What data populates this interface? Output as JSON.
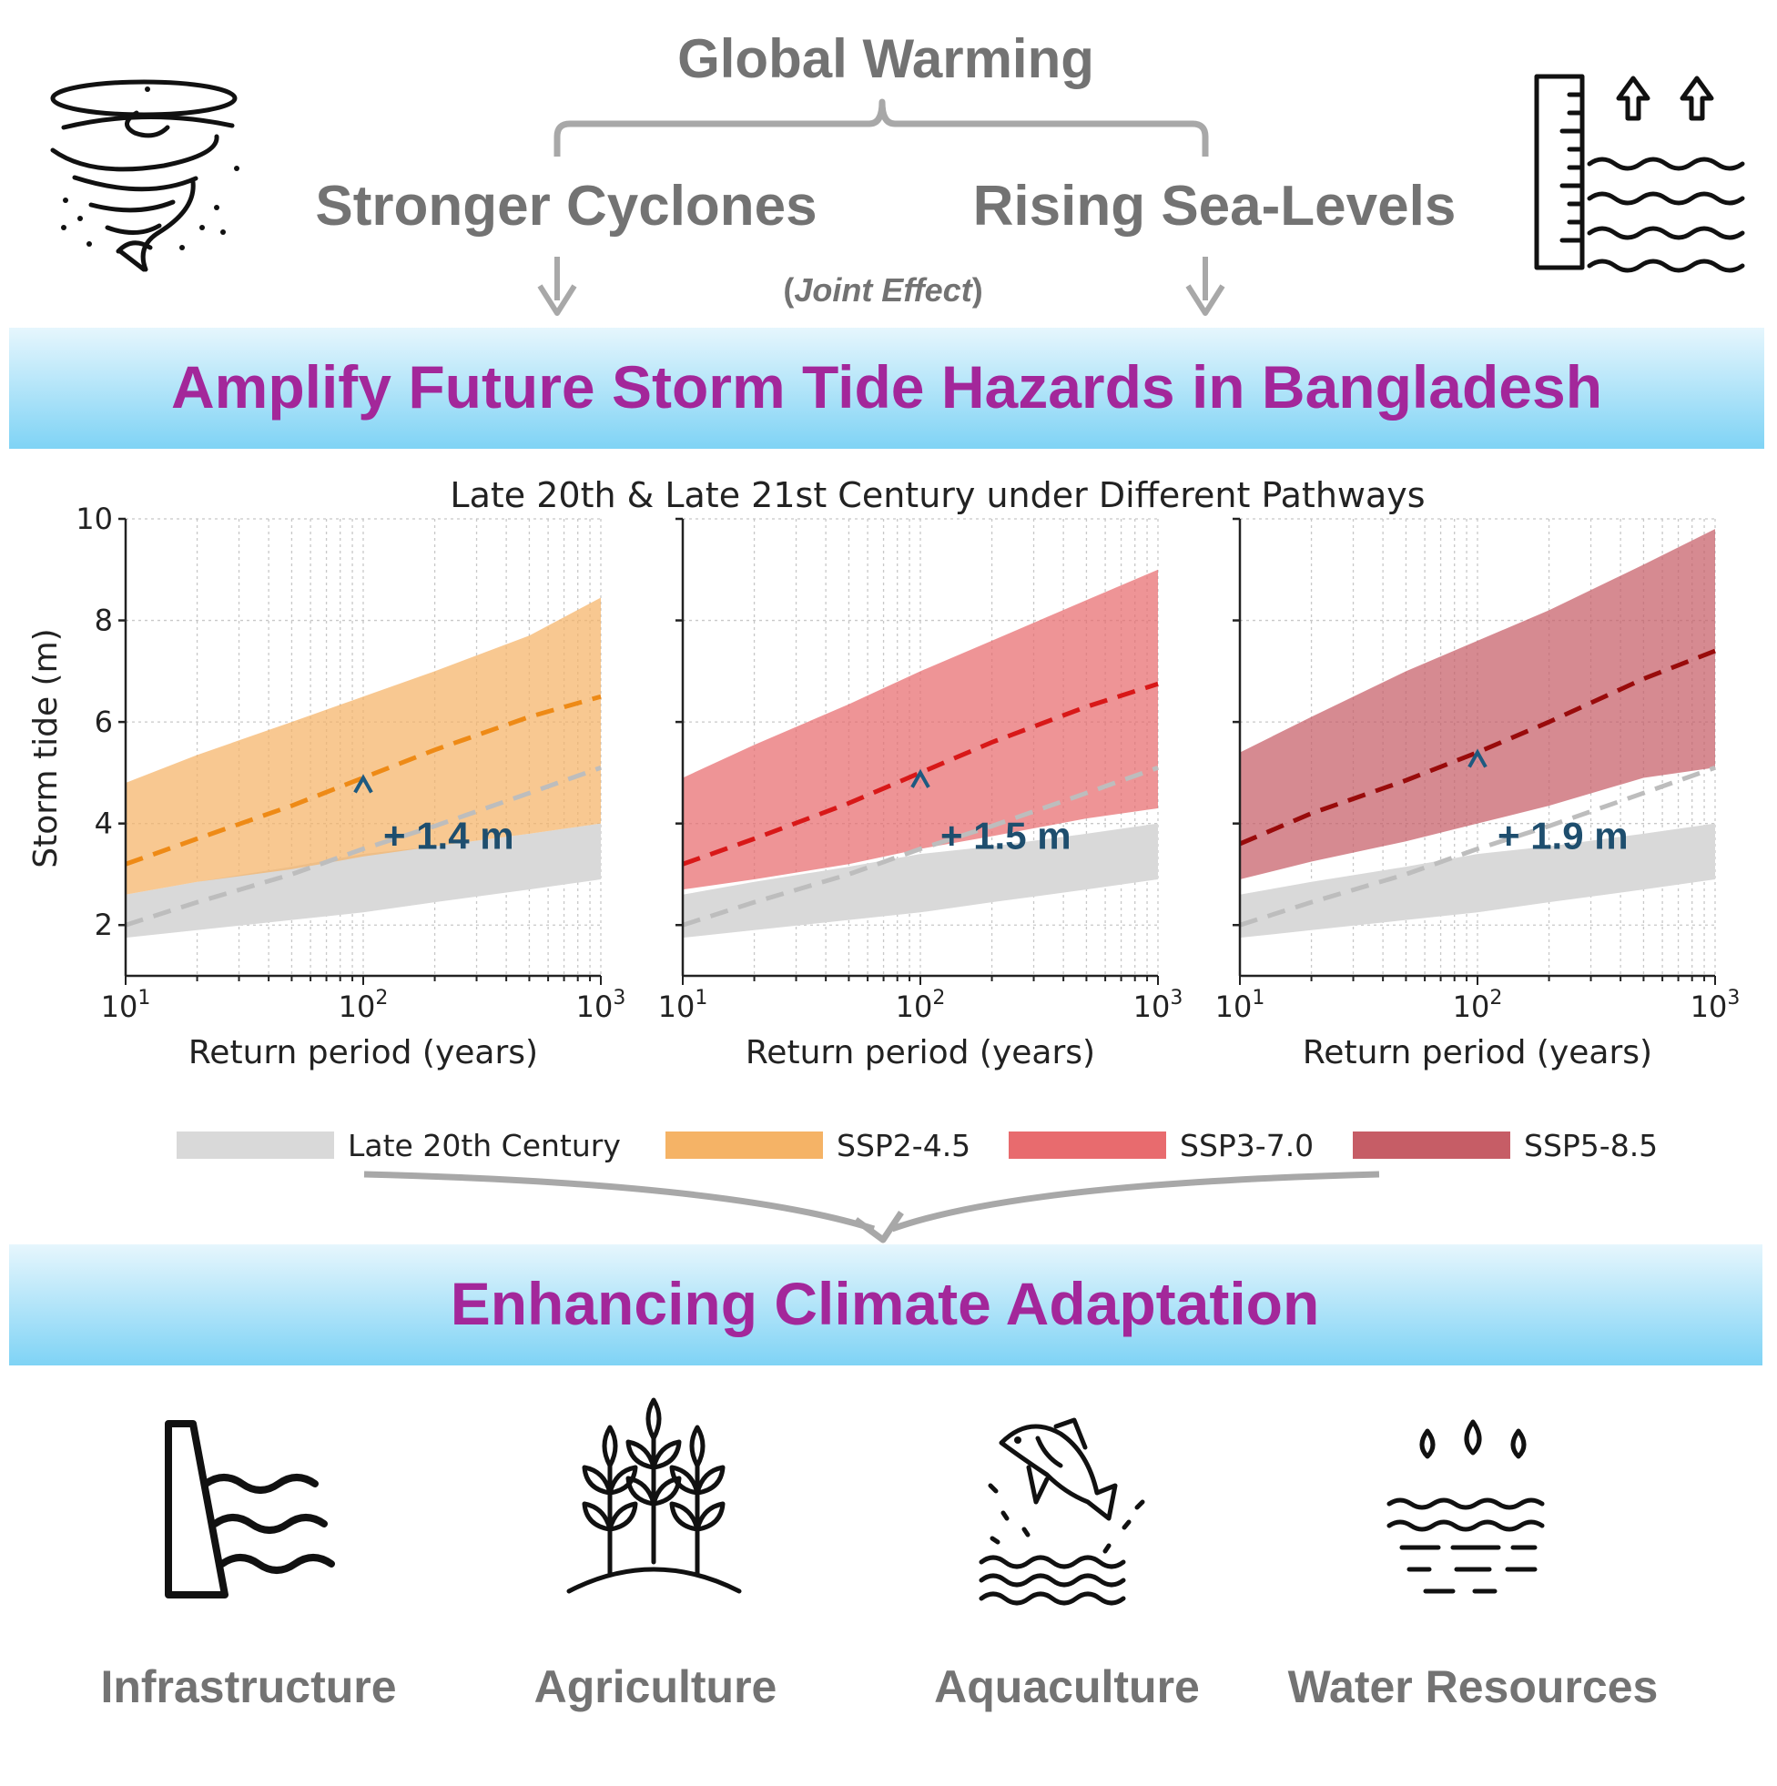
{
  "header": {
    "top_title": "Global Warming",
    "left_driver": "Stronger Cyclones",
    "right_driver": "Rising Sea-Levels",
    "joint_open": "(",
    "joint_text": "Joint Effect",
    "joint_close": ")",
    "left_icon": "cyclone-icon",
    "right_icon": "sea-level-rise-icon"
  },
  "banner_top": {
    "text": "Amplify Future Storm Tide Hazards in Bangladesh"
  },
  "banner_bottom": {
    "text": "Enhancing Climate Adaptation"
  },
  "colors": {
    "banner_text": "#a3279a",
    "banner_gradient": [
      "#e6f6fd",
      "#7fd3f5"
    ],
    "baseline_band": "#d9d9d9",
    "baseline_line": "#bdbdbd",
    "ssp245_band": "#f5b366",
    "ssp245_line": "#ee8a16",
    "ssp370_band": "#e86b6e",
    "ssp370_line": "#d81818",
    "ssp585_band": "#c65d66",
    "ssp585_line": "#990b0b",
    "gain_arrow": "#1e5a80"
  },
  "chart_data": {
    "type": "area",
    "title": "Late 20th & Late 21st Century under Different Pathways",
    "ylabel": "Storm tide (m)",
    "xlabel": "Return period (years)",
    "xscale": "log",
    "xlim": [
      10,
      1000
    ],
    "ylim": [
      1,
      10
    ],
    "yticks": [
      2,
      4,
      6,
      8,
      10
    ],
    "xticks": [
      {
        "base": "10",
        "exp": "1"
      },
      {
        "base": "10",
        "exp": "2"
      },
      {
        "base": "10",
        "exp": "3"
      }
    ],
    "grid": true,
    "legend_position": "bottom",
    "legend": [
      {
        "label": "Late 20th Century",
        "color": "#d9d9d9"
      },
      {
        "label": "SSP2-4.5",
        "color": "#f5b366"
      },
      {
        "label": "SSP3-7.0",
        "color": "#e86b6e"
      },
      {
        "label": "SSP5-8.5",
        "color": "#c65d66"
      }
    ],
    "x": [
      10,
      20,
      50,
      100,
      200,
      500,
      1000
    ],
    "baseline": {
      "name": "Late 20th Century",
      "median": [
        2.0,
        2.45,
        3.0,
        3.5,
        3.95,
        4.6,
        5.1
      ],
      "lower": [
        1.75,
        1.9,
        2.1,
        2.25,
        2.45,
        2.7,
        2.9
      ],
      "upper": [
        2.6,
        2.85,
        3.15,
        3.4,
        3.55,
        3.8,
        4.0
      ]
    },
    "panels": [
      {
        "scenario": "SSP2-4.5",
        "median": [
          3.2,
          3.7,
          4.35,
          4.9,
          5.45,
          6.1,
          6.5
        ],
        "lower": [
          2.6,
          2.85,
          3.1,
          3.35,
          3.55,
          3.8,
          4.0
        ],
        "upper": [
          4.8,
          5.35,
          6.0,
          6.5,
          7.0,
          7.7,
          8.45
        ],
        "increase_at_100yr": "+ 1.4 m"
      },
      {
        "scenario": "SSP3-7.0",
        "median": [
          3.2,
          3.7,
          4.4,
          5.0,
          5.6,
          6.3,
          6.75
        ],
        "lower": [
          2.7,
          2.9,
          3.2,
          3.5,
          3.75,
          4.1,
          4.3
        ],
        "upper": [
          4.9,
          5.55,
          6.35,
          7.0,
          7.6,
          8.4,
          9.0
        ],
        "increase_at_100yr": "+ 1.5 m"
      },
      {
        "scenario": "SSP5-8.5",
        "median": [
          3.6,
          4.2,
          4.85,
          5.4,
          6.0,
          6.85,
          7.4
        ],
        "lower": [
          2.9,
          3.25,
          3.65,
          4.0,
          4.35,
          4.9,
          5.1
        ],
        "upper": [
          5.4,
          6.1,
          7.0,
          7.6,
          8.2,
          9.1,
          9.8
        ],
        "increase_at_100yr": "+ 1.9 m"
      }
    ]
  },
  "sectors": [
    {
      "label": "Infrastructure",
      "icon": "dam-icon"
    },
    {
      "label": "Agriculture",
      "icon": "wheat-icon"
    },
    {
      "label": "Aquaculture",
      "icon": "fish-icon"
    },
    {
      "label": "Water Resources",
      "icon": "water-drops-icon"
    }
  ]
}
